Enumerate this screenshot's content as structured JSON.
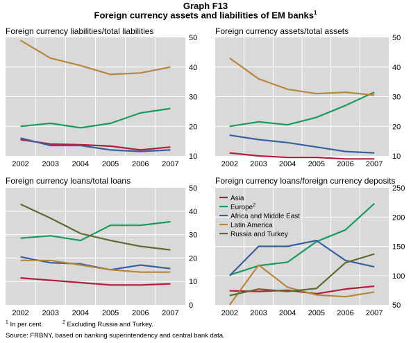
{
  "header": {
    "label": "Graph F13",
    "title": "Foreign currency assets and liabilities of EM banks",
    "title_footnote": "1"
  },
  "colors": {
    "Asia": "#b0203a",
    "Europe": "#1a9a5c",
    "Africa and Middle East": "#3a5fa0",
    "Latin America": "#b8863a",
    "Russia and Turkey": "#5e6a2e",
    "panel_bg": "#d9d9d9",
    "grid": "#ffffff"
  },
  "chart_data": [
    {
      "type": "line",
      "title": "Foreign currency liabilities/total liabilities",
      "x": [
        "2002",
        "2003",
        "2004",
        "2005",
        "2006",
        "2007"
      ],
      "ylim": [
        10,
        50
      ],
      "yticks": [
        "10",
        "20",
        "30",
        "40",
        "50"
      ],
      "y_axis_side": "right",
      "grid": true,
      "series": [
        {
          "name": "Asia",
          "values": [
            15.5,
            14.0,
            13.8,
            13.3,
            12.0,
            13.0
          ]
        },
        {
          "name": "Europe",
          "values": [
            20.0,
            21.0,
            19.5,
            21.0,
            24.5,
            26.0
          ]
        },
        {
          "name": "Africa and Middle East",
          "values": [
            16.0,
            13.5,
            13.5,
            12.0,
            11.5,
            12.0
          ]
        },
        {
          "name": "Latin America",
          "values": [
            49.0,
            43.0,
            40.5,
            37.5,
            38.0,
            40.0
          ]
        }
      ]
    },
    {
      "type": "line",
      "title": "Foreign currency assets/total assets",
      "x": [
        "2002",
        "2003",
        "2004",
        "2005",
        "2006",
        "2007"
      ],
      "ylim": [
        10,
        50
      ],
      "yticks": [
        "10",
        "20",
        "30",
        "40",
        "50"
      ],
      "y_axis_side": "right",
      "grid": true,
      "series": [
        {
          "name": "Asia",
          "values": [
            11.0,
            10.0,
            9.5,
            9.5,
            9.0,
            9.0
          ]
        },
        {
          "name": "Europe",
          "values": [
            20.0,
            21.5,
            20.5,
            23.0,
            27.0,
            31.5
          ]
        },
        {
          "name": "Africa and Middle East",
          "values": [
            17.0,
            15.5,
            14.5,
            13.0,
            11.5,
            11.0
          ]
        },
        {
          "name": "Latin America",
          "values": [
            43.0,
            36.0,
            32.5,
            31.0,
            31.5,
            30.5
          ]
        }
      ]
    },
    {
      "type": "line",
      "title": "Foreign currency loans/total loans",
      "x": [
        "2002",
        "2003",
        "2004",
        "2005",
        "2006",
        "2007"
      ],
      "ylim": [
        0,
        50
      ],
      "yticks": [
        "0",
        "10",
        "20",
        "30",
        "40",
        "50"
      ],
      "y_axis_side": "right",
      "grid": true,
      "series": [
        {
          "name": "Asia",
          "values": [
            11.5,
            10.5,
            9.5,
            8.5,
            8.5,
            9.0
          ]
        },
        {
          "name": "Europe",
          "values": [
            28.5,
            29.5,
            27.5,
            34.0,
            34.0,
            35.5
          ]
        },
        {
          "name": "Africa and Middle East",
          "values": [
            20.5,
            18.0,
            17.5,
            15.0,
            17.0,
            15.5
          ]
        },
        {
          "name": "Latin America",
          "values": [
            19.0,
            19.0,
            17.0,
            15.0,
            14.0,
            14.0
          ]
        },
        {
          "name": "Russia and Turkey",
          "values": [
            43.0,
            37.0,
            30.5,
            27.5,
            25.0,
            23.5
          ]
        }
      ]
    },
    {
      "type": "line",
      "title": "Foreign currency loans/foreign currency deposits",
      "x": [
        "2002",
        "2003",
        "2004",
        "2005",
        "2006",
        "2007"
      ],
      "ylim": [
        50,
        250
      ],
      "yticks": [
        "50",
        "100",
        "150",
        "200",
        "250"
      ],
      "y_axis_side": "right",
      "grid": true,
      "legend_placement": "top-left",
      "series": [
        {
          "name": "Asia",
          "values": [
            74,
            73,
            75,
            69,
            77,
            82
          ]
        },
        {
          "name": "Europe",
          "values": [
            101,
            117,
            123,
            158,
            178,
            223
          ]
        },
        {
          "name": "Africa and Middle East",
          "values": [
            100,
            150,
            150,
            160,
            126,
            115
          ]
        },
        {
          "name": "Latin America",
          "values": [
            50,
            118,
            80,
            67,
            64,
            72
          ]
        },
        {
          "name": "Russia and Turkey",
          "values": [
            66,
            77,
            73,
            78,
            122,
            137
          ]
        }
      ]
    }
  ],
  "legend": {
    "items": [
      {
        "key": "Asia",
        "label": "Asia",
        "sup": ""
      },
      {
        "key": "Europe",
        "label": "Europe",
        "sup": "2"
      },
      {
        "key": "Africa and Middle East",
        "label": "Africa and Middle East",
        "sup": ""
      },
      {
        "key": "Latin America",
        "label": "Latin America",
        "sup": ""
      },
      {
        "key": "Russia and Turkey",
        "label": "Russia and Turkey",
        "sup": ""
      }
    ]
  },
  "footnotes": {
    "note1_num": "1",
    "note1_text": "In per cent.",
    "note2_num": "2",
    "note2_text": "Excluding Russia and Turkey.",
    "source": "Source: FRBNY, based on banking superintendency and central bank data."
  }
}
